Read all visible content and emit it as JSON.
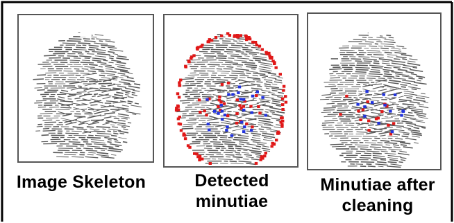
{
  "panels": [
    {
      "id": "skeleton",
      "caption": "Image Skeleton",
      "red_minutiae": 0,
      "blue_minutiae": 0
    },
    {
      "id": "detected",
      "caption": "Detected minutiae",
      "red_minutiae": 140,
      "blue_minutiae": 28
    },
    {
      "id": "cleaned",
      "caption": "Minutiae after cleaning",
      "red_minutiae": 16,
      "blue_minutiae": 14
    }
  ],
  "colors": {
    "ridge": "#5a5a5a",
    "minutia_red": "#e01818",
    "minutia_blue": "#2233dd",
    "frame": "#000000",
    "panel_border": "#555555"
  },
  "captions": {
    "skeleton_line1": "Image Skeleton",
    "detected_line1": "Detected",
    "detected_line2": "minutiae",
    "cleaned_line1": "Minutiae after",
    "cleaned_line2": "cleaning"
  }
}
